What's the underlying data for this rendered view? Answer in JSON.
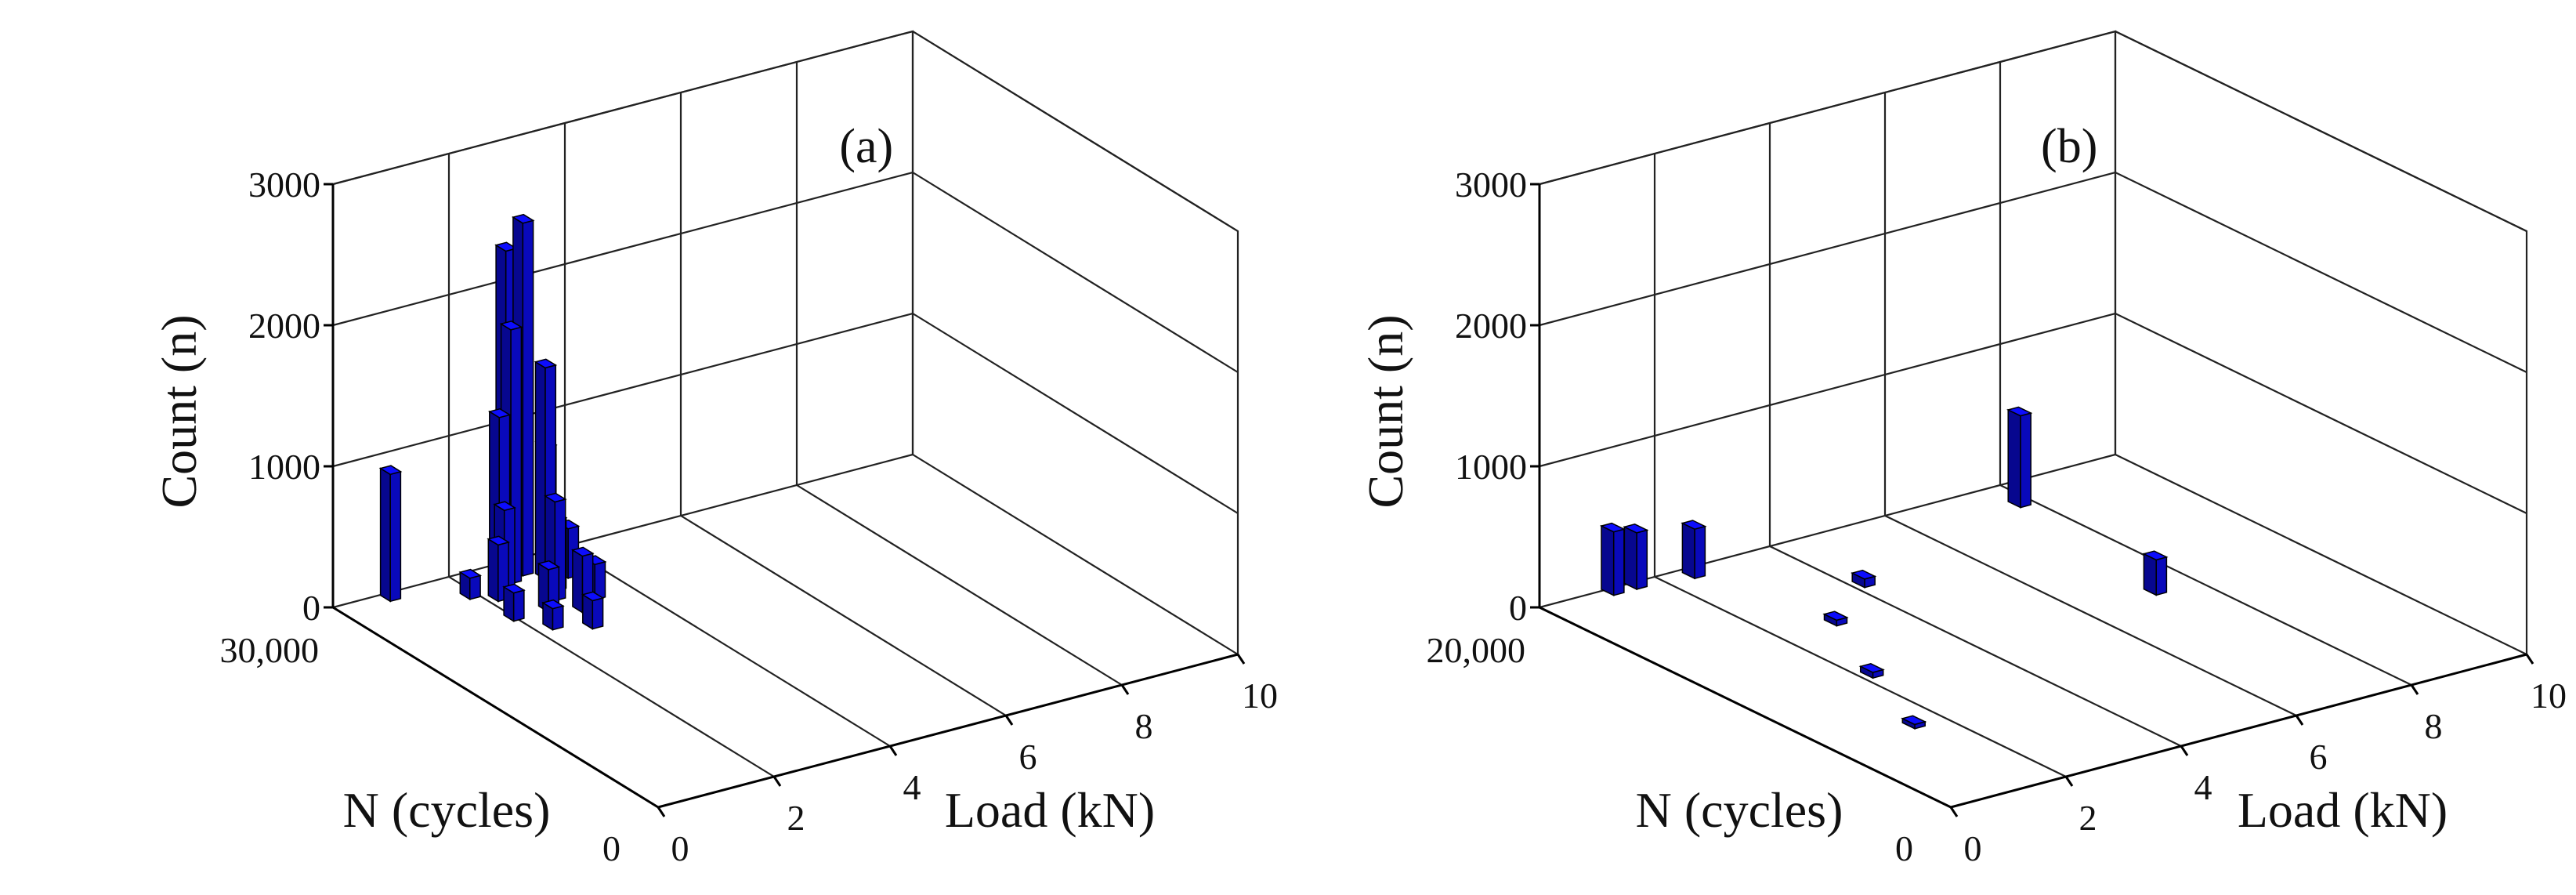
{
  "chart_data": [
    {
      "type": "bar3d",
      "panel_label": "(a)",
      "zlabel": "Count (n)",
      "xlabel": "Load (kN)",
      "ylabel": "N (cycles)",
      "z_ticks": [
        "0",
        "1000",
        "2000",
        "3000"
      ],
      "x_ticks": [
        "0",
        "2",
        "4",
        "6",
        "8",
        "10"
      ],
      "y_ticks": [
        "0",
        "30,000"
      ],
      "xlim": [
        0,
        10
      ],
      "ylim": [
        0,
        30000
      ],
      "zlim": [
        0,
        3000
      ],
      "bar_color": "#0b0bdc",
      "grid": true,
      "bars": [
        {
          "load": 2.8,
          "cycles": 29000,
          "count": 2300
        },
        {
          "load": 3.0,
          "cycles": 28500,
          "count": 2500
        },
        {
          "load": 2.7,
          "cycles": 28000,
          "count": 1800
        },
        {
          "load": 3.2,
          "cycles": 27500,
          "count": 1500
        },
        {
          "load": 2.5,
          "cycles": 28000,
          "count": 1200
        },
        {
          "load": 3.3,
          "cycles": 28000,
          "count": 900
        },
        {
          "load": 0.9,
          "cycles": 29500,
          "count": 900
        },
        {
          "load": 2.4,
          "cycles": 27000,
          "count": 600
        },
        {
          "load": 3.1,
          "cycles": 26000,
          "count": 500
        },
        {
          "load": 2.9,
          "cycles": 25000,
          "count": 700
        },
        {
          "load": 2.2,
          "cycles": 26500,
          "count": 400
        },
        {
          "load": 3.5,
          "cycles": 27000,
          "count": 350
        },
        {
          "load": 3.0,
          "cycles": 23000,
          "count": 400
        },
        {
          "load": 2.6,
          "cycles": 24000,
          "count": 300
        },
        {
          "load": 3.6,
          "cycles": 29500,
          "count": 120
        },
        {
          "load": 2.0,
          "cycles": 24000,
          "count": 200
        },
        {
          "load": 3.4,
          "cycles": 24000,
          "count": 250
        },
        {
          "load": 2.8,
          "cycles": 21000,
          "count": 200
        },
        {
          "load": 1.9,
          "cycles": 27500,
          "count": 150
        },
        {
          "load": 2.3,
          "cycles": 22000,
          "count": 150
        }
      ]
    },
    {
      "type": "bar3d",
      "panel_label": "(b)",
      "zlabel": "Count (n)",
      "xlabel": "Load (kN)",
      "ylabel": "N (cycles)",
      "z_ticks": [
        "0",
        "1000",
        "2000",
        "3000"
      ],
      "x_ticks": [
        "0",
        "2",
        "4",
        "6",
        "8",
        "10"
      ],
      "y_ticks": [
        "0",
        "20,000"
      ],
      "xlim": [
        0,
        10
      ],
      "ylim": [
        0,
        20000
      ],
      "zlim": [
        0,
        3000
      ],
      "bar_color": "#0b0bdc",
      "grid": true,
      "bars": [
        {
          "load": 1.2,
          "cycles": 19800,
          "count": 450
        },
        {
          "load": 1.6,
          "cycles": 19800,
          "count": 400
        },
        {
          "load": 2.5,
          "cycles": 19500,
          "count": 350
        },
        {
          "load": 7.8,
          "cycles": 18500,
          "count": 650
        },
        {
          "load": 7.3,
          "cycles": 10500,
          "count": 250
        },
        {
          "load": 4.2,
          "cycles": 16000,
          "count": 60
        },
        {
          "load": 3.0,
          "cycles": 14000,
          "count": 40
        },
        {
          "load": 2.2,
          "cycles": 10000,
          "count": 40
        },
        {
          "load": 1.5,
          "cycles": 6000,
          "count": 30
        }
      ]
    }
  ]
}
